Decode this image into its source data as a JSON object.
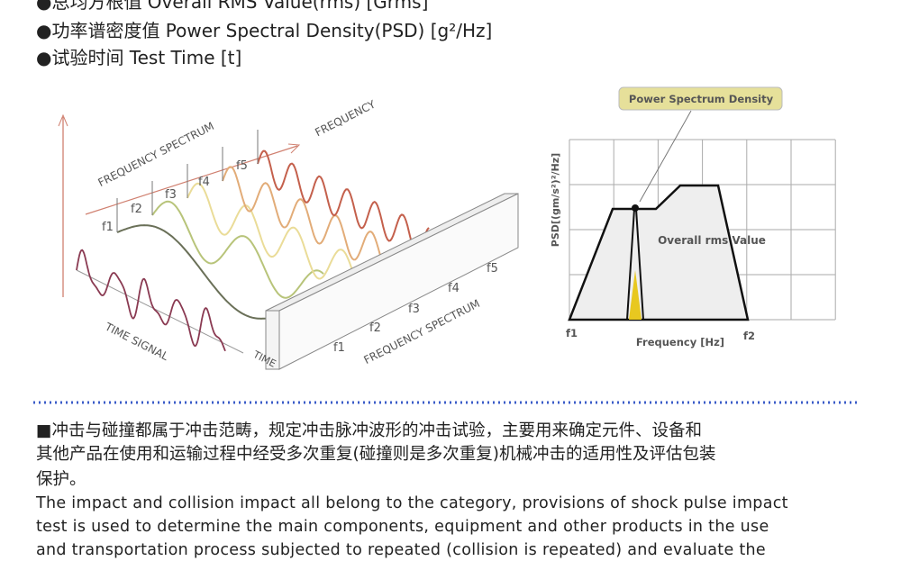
{
  "bullets": [
    "●总均方根值 Overall RMS Value(rms) [Grms]",
    "●功率谱密度值 Power Spectral Density(PSD) [g²/Hz]",
    "●试验时间 Test Time [t]"
  ],
  "left_diagram": {
    "spectrum_label": "FREQUENCY SPECTRUM",
    "frequency_label": "FREQUENCY",
    "time_signal_label": "TIME SIGNAL",
    "time_label": "TIME",
    "bottom_spectrum_label": "FREQUENCY SPECTRUM",
    "top_f": [
      "f1",
      "f2",
      "f3",
      "f4",
      "f5"
    ],
    "bottom_f": [
      "f1",
      "f2",
      "f3",
      "f4",
      "f5"
    ]
  },
  "right_diagram": {
    "callout": "Power Spectrum Density",
    "y_label": "PSD[(gm/s²)²/Hz]",
    "inner_label": "Overall rms Value",
    "x_label": "Frequency [Hz]",
    "f_start": "f1",
    "f_end": "f2"
  },
  "paragraph_zh": [
    "■冲击与碰撞都属于冲击范畴，规定冲击脉冲波形的冲击试验，主要用来确定元件、设备和",
    "其他产品在使用和运输过程中经受多次重复(碰撞则是多次重复)机械冲击的适用性及评估包装",
    "保护。"
  ],
  "paragraph_en": [
    "The impact and collision impact all belong to the category, provisions of shock pulse impact",
    "test is used to determine the main components, equipment and other products in the use",
    "and transportation process subjected to repeated (collision is repeated) and evaluate the"
  ]
}
